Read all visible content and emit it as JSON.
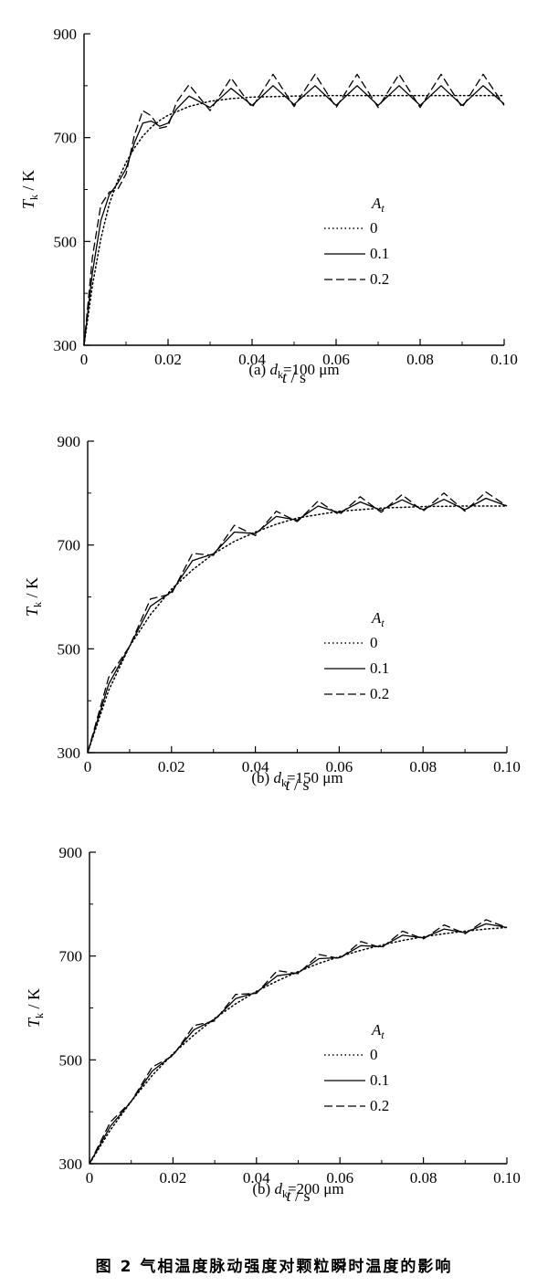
{
  "figure_caption": "图 2   气相温度脉动强度对颗粒瞬时温度的影响",
  "chart_data": [
    {
      "type": "line",
      "panel": "a",
      "caption": {
        "prefix": "(a) ",
        "var": "d",
        "sub": "k",
        "value": "=100 μm"
      },
      "xlabel": {
        "var": "t",
        "unit": " / s"
      },
      "ylabel": {
        "var": "T",
        "sub": "k",
        "unit": " / K"
      },
      "xlim": [
        0,
        0.1
      ],
      "ylim": [
        300,
        900
      ],
      "xticks": [
        "0",
        "0.02",
        "0.04",
        "0.06",
        "0.08",
        "0.10"
      ],
      "yticks": [
        "300",
        "500",
        "700",
        "900"
      ],
      "legend": {
        "title_var": "A",
        "title_sub": "t",
        "placement": "center-right"
      },
      "series": [
        {
          "name": "0",
          "style": "dotted",
          "x": [
            0,
            0.002,
            0.004,
            0.006,
            0.008,
            0.01,
            0.012,
            0.014,
            0.016,
            0.018,
            0.02,
            0.025,
            0.03,
            0.035,
            0.04,
            0.05,
            0.06,
            0.07,
            0.08,
            0.09,
            0.1
          ],
          "y": [
            300,
            415,
            505,
            572,
            617,
            652,
            680,
            703,
            720,
            733,
            743,
            760,
            770,
            775,
            778,
            780,
            781,
            781,
            781,
            781,
            781
          ]
        },
        {
          "name": "0.1",
          "style": "solid",
          "x": [
            0,
            0.002,
            0.004,
            0.006,
            0.008,
            0.01,
            0.012,
            0.014,
            0.016,
            0.018,
            0.02,
            0.022,
            0.025,
            0.03,
            0.035,
            0.04,
            0.045,
            0.05,
            0.055,
            0.06,
            0.065,
            0.07,
            0.075,
            0.08,
            0.085,
            0.09,
            0.095,
            0.1
          ],
          "y": [
            300,
            440,
            540,
            590,
            612,
            640,
            690,
            728,
            732,
            722,
            728,
            755,
            780,
            758,
            795,
            762,
            800,
            764,
            800,
            762,
            800,
            762,
            800,
            762,
            800,
            762,
            800,
            765
          ]
        },
        {
          "name": "0.2",
          "style": "dashed",
          "x": [
            0,
            0.002,
            0.004,
            0.006,
            0.008,
            0.01,
            0.012,
            0.014,
            0.016,
            0.018,
            0.02,
            0.022,
            0.025,
            0.03,
            0.035,
            0.04,
            0.045,
            0.05,
            0.055,
            0.06,
            0.065,
            0.07,
            0.075,
            0.08,
            0.085,
            0.09,
            0.095,
            0.1
          ],
          "y": [
            300,
            470,
            570,
            595,
            600,
            630,
            705,
            752,
            742,
            718,
            722,
            768,
            802,
            752,
            815,
            758,
            822,
            760,
            822,
            758,
            822,
            758,
            822,
            758,
            822,
            758,
            822,
            762
          ]
        }
      ]
    },
    {
      "type": "line",
      "panel": "b",
      "caption": {
        "prefix": "(b) ",
        "var": "d",
        "sub": "k",
        "value": "=150 μm"
      },
      "xlabel": {
        "var": "t",
        "unit": " / s"
      },
      "ylabel": {
        "var": "T",
        "sub": "k",
        "unit": " / K"
      },
      "xlim": [
        0,
        0.1
      ],
      "ylim": [
        300,
        900
      ],
      "xticks": [
        "0",
        "0.02",
        "0.04",
        "0.06",
        "0.08",
        "0.10"
      ],
      "yticks": [
        "300",
        "500",
        "700",
        "900"
      ],
      "legend": {
        "title_var": "A",
        "title_sub": "t",
        "placement": "center-right"
      },
      "series": [
        {
          "name": "0",
          "style": "dotted",
          "x": [
            0,
            0.005,
            0.01,
            0.015,
            0.02,
            0.025,
            0.03,
            0.035,
            0.04,
            0.045,
            0.05,
            0.06,
            0.07,
            0.08,
            0.09,
            0.1
          ],
          "y": [
            300,
            420,
            505,
            566,
            615,
            652,
            683,
            707,
            725,
            740,
            752,
            765,
            771,
            774,
            775,
            775
          ]
        },
        {
          "name": "0.1",
          "style": "solid",
          "x": [
            0,
            0.005,
            0.01,
            0.015,
            0.02,
            0.025,
            0.03,
            0.035,
            0.04,
            0.045,
            0.05,
            0.055,
            0.06,
            0.065,
            0.07,
            0.075,
            0.08,
            0.085,
            0.09,
            0.095,
            0.1
          ],
          "y": [
            300,
            432,
            505,
            582,
            610,
            670,
            683,
            725,
            722,
            755,
            748,
            775,
            762,
            783,
            767,
            787,
            768,
            788,
            768,
            790,
            775
          ]
        },
        {
          "name": "0.2",
          "style": "dashed",
          "x": [
            0,
            0.005,
            0.01,
            0.015,
            0.02,
            0.025,
            0.03,
            0.035,
            0.04,
            0.045,
            0.05,
            0.055,
            0.06,
            0.065,
            0.07,
            0.075,
            0.08,
            0.085,
            0.09,
            0.095,
            0.1
          ],
          "y": [
            300,
            445,
            505,
            596,
            606,
            684,
            680,
            738,
            718,
            765,
            745,
            785,
            758,
            793,
            763,
            797,
            765,
            800,
            765,
            802,
            775
          ]
        }
      ]
    },
    {
      "type": "line",
      "panel": "c",
      "caption": {
        "prefix": "(b) ",
        "var": "d",
        "sub": "k",
        "value": "=200 μm"
      },
      "xlabel": {
        "var": "t",
        "unit": " / s"
      },
      "ylabel": {
        "var": "T",
        "sub": "k",
        "unit": " / K"
      },
      "xlim": [
        0,
        0.1
      ],
      "ylim": [
        300,
        900
      ],
      "xticks": [
        "0",
        "0.02",
        "0.04",
        "0.06",
        "0.08",
        "0.10"
      ],
      "yticks": [
        "300",
        "500",
        "700",
        "900"
      ],
      "legend": {
        "title_var": "A",
        "title_sub": "t",
        "placement": "center-right"
      },
      "series": [
        {
          "name": "0",
          "style": "dotted",
          "x": [
            0,
            0.005,
            0.01,
            0.015,
            0.02,
            0.025,
            0.03,
            0.035,
            0.04,
            0.045,
            0.05,
            0.055,
            0.06,
            0.065,
            0.07,
            0.075,
            0.08,
            0.085,
            0.09,
            0.095,
            0.1
          ],
          "y": [
            300,
            365,
            420,
            470,
            512,
            548,
            580,
            608,
            632,
            652,
            670,
            686,
            699,
            711,
            721,
            730,
            737,
            743,
            748,
            752,
            755
          ]
        },
        {
          "name": "0.1",
          "style": "solid",
          "x": [
            0,
            0.005,
            0.01,
            0.015,
            0.02,
            0.025,
            0.03,
            0.035,
            0.04,
            0.045,
            0.05,
            0.055,
            0.06,
            0.065,
            0.07,
            0.075,
            0.08,
            0.085,
            0.09,
            0.095,
            0.1
          ],
          "y": [
            300,
            372,
            420,
            478,
            510,
            558,
            578,
            618,
            630,
            662,
            668,
            695,
            697,
            720,
            718,
            740,
            735,
            752,
            745,
            762,
            755
          ]
        },
        {
          "name": "0.2",
          "style": "dashed",
          "x": [
            0,
            0.005,
            0.01,
            0.015,
            0.02,
            0.025,
            0.03,
            0.035,
            0.04,
            0.045,
            0.05,
            0.055,
            0.06,
            0.065,
            0.07,
            0.075,
            0.08,
            0.085,
            0.09,
            0.095,
            0.1
          ],
          "y": [
            300,
            380,
            420,
            486,
            508,
            566,
            575,
            626,
            628,
            672,
            666,
            703,
            695,
            728,
            716,
            748,
            733,
            760,
            743,
            770,
            755
          ]
        }
      ]
    }
  ]
}
